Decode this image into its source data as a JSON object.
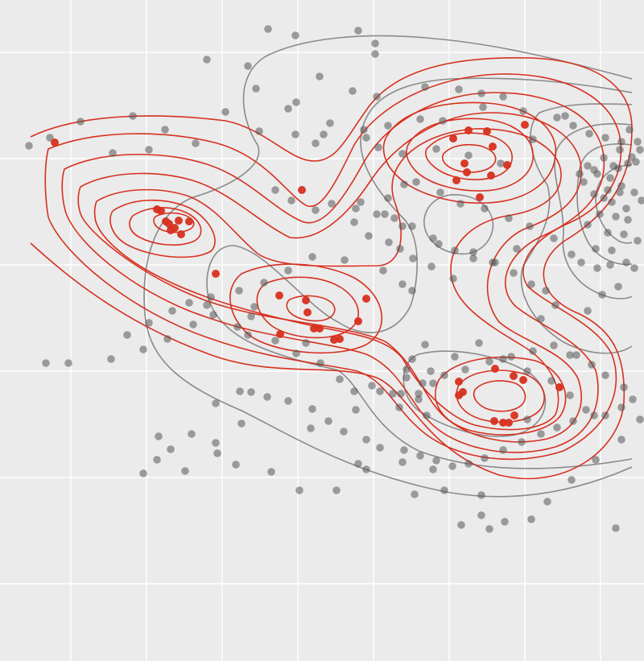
{
  "chart_data": {
    "type": "scatter",
    "title": "",
    "xlabel": "",
    "ylabel": "",
    "grid": true,
    "legend": "none",
    "xlim": [
      0,
      8
    ],
    "ylim": [
      0,
      8.21
    ],
    "colors": {
      "background": "#ebebeb",
      "grid": "#ffffff",
      "gray_points": "#555555",
      "gray_contours": "#8a8a8a",
      "red": "#d7301f"
    },
    "series": [
      {
        "color": "#555555",
        "kind": "points",
        "x": [
          3.33,
          3.67,
          4.45,
          4.66,
          4.66,
          2.57,
          3.08,
          3.97,
          3.18,
          4.38,
          4.68,
          5.28,
          5.7,
          5.98,
          6.25,
          6.0,
          6.5,
          7.02,
          5.5,
          5.22,
          4.82,
          4.52,
          4.1,
          3.58,
          3.68,
          2.8,
          3.22,
          2.05,
          1.65,
          1.0,
          0.62,
          0.36,
          2.43,
          1.85,
          1.4,
          3.92,
          3.67,
          4.02,
          4.55,
          4.7,
          5.0,
          5.42,
          5.82,
          6.22,
          6.62,
          6.92,
          7.12,
          7.32,
          7.52,
          7.72,
          7.82,
          7.92,
          7.95,
          7.85,
          7.7,
          7.5,
          7.3,
          7.2,
          7.38,
          7.58,
          7.68,
          7.8,
          7.9,
          7.62,
          7.42,
          7.25,
          7.38,
          7.55,
          7.72,
          7.88,
          7.97,
          7.78,
          7.6,
          7.5,
          7.7,
          7.45,
          7.65,
          7.8,
          7.3,
          7.55,
          7.75,
          7.92,
          7.4,
          7.6,
          7.1,
          7.22,
          7.42,
          7.58,
          7.78,
          7.88,
          7.68,
          7.48,
          7.3,
          6.9,
          6.78,
          6.6,
          6.38,
          6.15,
          5.88,
          5.65,
          5.38,
          5.12,
          4.9,
          4.68,
          4.48,
          4.82,
          5.02,
          5.17,
          5.47,
          5.72,
          6.02,
          6.32,
          6.58,
          6.88,
          6.42,
          6.12,
          5.88,
          5.45,
          5.0,
          4.78,
          4.42,
          4.12,
          3.42,
          3.62,
          3.92,
          4.4,
          4.58,
          4.83,
          4.97,
          5.13,
          5.36,
          5.63,
          5.12,
          5.0,
          4.76,
          4.28,
          3.88,
          3.58,
          3.28,
          2.97,
          2.62,
          2.35,
          2.14,
          1.85,
          1.58,
          1.38,
          0.85,
          1.78,
          2.08,
          2.4,
          2.57,
          2.65,
          2.95,
          3.08,
          3.42,
          3.68,
          3.98,
          4.22,
          4.62,
          4.88,
          5.2,
          5.38,
          5.52,
          5.78,
          6.08,
          6.35,
          6.62,
          6.88,
          7.16,
          7.35,
          7.52,
          7.75,
          7.86,
          7.72,
          7.52,
          7.28,
          7.08,
          6.85,
          6.55,
          6.25,
          5.95,
          5.65,
          5.35,
          5.05,
          4.72,
          4.42,
          4.08,
          3.88,
          3.58,
          3.32,
          3.12,
          2.98,
          2.68,
          2.38,
          2.12,
          1.95,
          1.78,
          2.3,
          2.68,
          3.0,
          4.27,
          4.55,
          4.72,
          5.02,
          5.22,
          5.42,
          5.62,
          5.82,
          6.02,
          6.25,
          6.48,
          6.72,
          6.92,
          7.12,
          7.38,
          5.38,
          5.0,
          4.55,
          4.18,
          3.72,
          3.37,
          2.93,
          2.7,
          5.15,
          5.52,
          5.98,
          5.98,
          6.6,
          7.65,
          6.27,
          5.73,
          0.57,
          1.97,
          4.45,
          6.08,
          6.8,
          7.1,
          7.4,
          7.72,
          7.95,
          7.08,
          6.72,
          6.55,
          5.2,
          4.96,
          4.98,
          5.3,
          5.25,
          5.05,
          5.12,
          5.28,
          4.4,
          3.8,
          3.86,
          3.12,
          3.16
        ],
        "y": [
          7.85,
          7.77,
          7.83,
          7.67,
          7.54,
          7.47,
          7.39,
          7.26,
          7.11,
          7.08,
          7.01,
          7.13,
          7.1,
          7.05,
          7.01,
          6.88,
          6.83,
          6.77,
          6.71,
          6.73,
          6.65,
          6.6,
          6.68,
          6.86,
          6.94,
          6.82,
          6.58,
          6.6,
          6.77,
          6.7,
          6.5,
          6.4,
          6.43,
          6.35,
          6.31,
          6.43,
          6.54,
          6.54,
          6.5,
          6.38,
          6.3,
          6.36,
          6.28,
          6.18,
          6.48,
          6.75,
          6.65,
          6.55,
          6.5,
          6.45,
          6.6,
          6.45,
          6.35,
          6.26,
          6.35,
          6.25,
          6.15,
          6.05,
          6.1,
          6.0,
          6.12,
          6.18,
          6.2,
          6.15,
          6.05,
          5.95,
          5.8,
          5.85,
          5.9,
          5.82,
          5.72,
          5.62,
          5.7,
          5.75,
          5.82,
          5.55,
          5.52,
          5.48,
          5.42,
          5.32,
          5.3,
          5.22,
          5.12,
          5.1,
          5.05,
          4.95,
          4.88,
          4.92,
          4.95,
          4.88,
          4.65,
          4.55,
          4.35,
          4.42,
          4.6,
          4.68,
          4.82,
          4.95,
          5.0,
          5.1,
          5.25,
          5.4,
          5.5,
          5.55,
          5.7,
          5.75,
          5.92,
          5.95,
          5.82,
          5.68,
          5.62,
          5.5,
          5.4,
          5.25,
          5.12,
          4.95,
          5.08,
          5.18,
          5.4,
          5.55,
          5.62,
          5.68,
          5.85,
          5.72,
          5.6,
          5.45,
          5.28,
          5.2,
          5.12,
          5.0,
          4.9,
          4.75,
          4.6,
          4.68,
          4.85,
          4.98,
          5.02,
          4.85,
          4.7,
          4.6,
          4.52,
          4.45,
          4.35,
          4.2,
          4.05,
          3.75,
          3.7,
          3.87,
          4.0,
          4.18,
          4.42,
          4.3,
          4.15,
          4.05,
          3.98,
          3.82,
          3.7,
          3.5,
          3.42,
          3.32,
          3.32,
          3.45,
          3.55,
          3.62,
          3.72,
          3.78,
          3.85,
          3.92,
          3.8,
          3.68,
          3.55,
          3.4,
          3.25,
          3.15,
          3.05,
          3.12,
          3.3,
          3.48,
          3.6,
          3.75,
          3.95,
          3.78,
          3.6,
          3.52,
          3.35,
          3.12,
          2.98,
          3.13,
          3.23,
          3.28,
          3.34,
          3.35,
          3.2,
          2.82,
          2.63,
          2.5,
          2.33,
          2.36,
          2.71,
          2.95,
          2.85,
          2.75,
          2.65,
          2.62,
          2.55,
          2.49,
          2.42,
          2.45,
          2.52,
          2.62,
          2.72,
          2.82,
          2.9,
          2.98,
          3.05,
          2.38,
          2.47,
          2.38,
          2.12,
          2.12,
          2.35,
          2.44,
          2.58,
          2.07,
          2.12,
          2.06,
          1.81,
          1.76,
          1.65,
          1.73,
          1.69,
          3.7,
          2.79,
          2.45,
          1.64,
          1.98,
          2.25,
          2.5,
          2.75,
          3.0,
          3.8,
          4.25,
          3.0,
          3.25,
          3.15,
          3.32,
          3.05,
          3.45,
          3.62,
          3.75,
          3.93,
          3.35,
          3.95,
          2.89,
          4.28,
          4.4
        ]
      },
      {
        "color": "#d7301f",
        "kind": "points",
        "x": [
          0.68,
          1.95,
          2.0,
          2.06,
          2.1,
          2.12,
          2.17,
          2.22,
          2.25,
          2.35,
          3.75,
          2.68,
          3.47,
          3.8,
          3.82,
          3.9,
          3.97,
          4.15,
          4.22,
          4.45,
          4.55,
          3.48,
          5.63,
          5.82,
          6.05,
          6.12,
          6.52,
          6.3,
          6.1,
          5.77,
          5.8,
          5.67,
          5.96,
          5.7,
          6.15,
          6.5,
          6.95,
          6.38,
          6.14,
          6.25,
          6.32,
          6.39,
          5.75,
          5.7
        ],
        "y": [
          6.44,
          5.61,
          5.59,
          5.46,
          5.43,
          5.35,
          5.38,
          5.47,
          5.3,
          5.46,
          5.85,
          4.81,
          4.54,
          4.48,
          4.33,
          4.13,
          4.13,
          3.99,
          4.0,
          4.22,
          4.5,
          4.06,
          6.49,
          6.59,
          6.58,
          6.39,
          6.66,
          6.16,
          6.03,
          6.18,
          6.07,
          5.97,
          5.76,
          3.47,
          3.63,
          3.49,
          3.4,
          3.54,
          2.98,
          2.96,
          2.96,
          3.05,
          3.34,
          3.3
        ]
      }
    ]
  }
}
